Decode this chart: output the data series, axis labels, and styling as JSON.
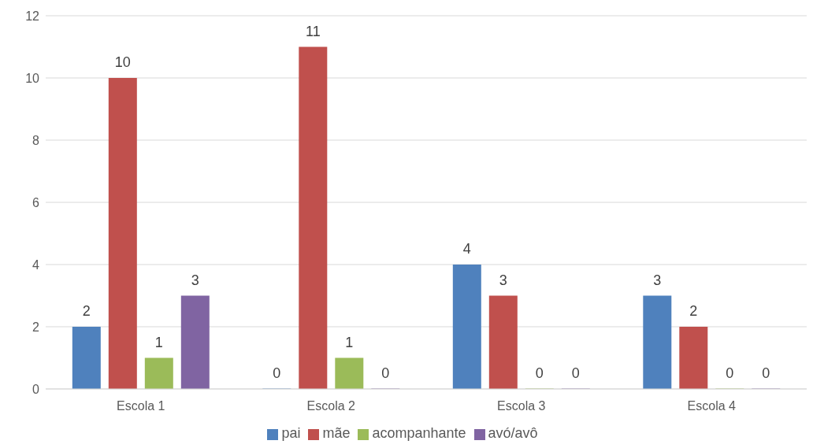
{
  "chart_data": {
    "type": "bar",
    "categories": [
      "Escola 1",
      "Escola 2",
      "Escola 3",
      "Escola 4"
    ],
    "series": [
      {
        "name": "pai",
        "color": "#4f81bd",
        "values": [
          2,
          0,
          4,
          3
        ]
      },
      {
        "name": "mãe",
        "color": "#c0504d",
        "values": [
          10,
          11,
          3,
          2
        ]
      },
      {
        "name": "acompanhante",
        "color": "#9bbb59",
        "values": [
          1,
          1,
          0,
          0
        ]
      },
      {
        "name": "avó/avô",
        "color": "#8064a2",
        "values": [
          3,
          0,
          0,
          0
        ]
      }
    ],
    "ylim": [
      0,
      12
    ],
    "yticks": [
      0,
      2,
      4,
      6,
      8,
      10,
      12
    ],
    "grid": "y",
    "legend": "bottom",
    "data_labels": true
  }
}
